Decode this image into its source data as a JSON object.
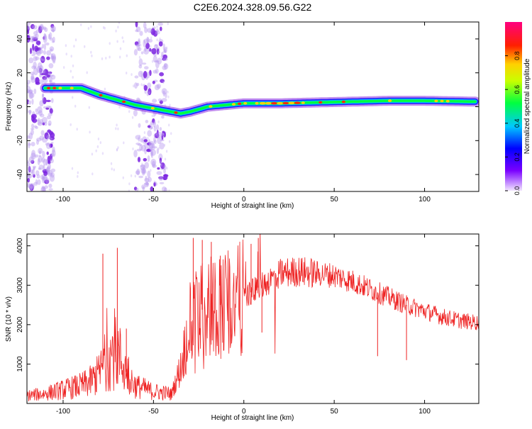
{
  "title": "C2E6.2024.328.09.56.G22",
  "chart_data": [
    {
      "type": "heatmap",
      "title": "C2E6.2024.328.09.56.G22",
      "xlabel": "Height of straight line (km)",
      "ylabel": "Frequency (Hz)",
      "xlim": [
        -120,
        130
      ],
      "ylim": [
        -50,
        50
      ],
      "xticks": [
        -100,
        -50,
        0,
        50,
        100
      ],
      "yticks": [
        -40,
        -20,
        0,
        20,
        40
      ],
      "colorbar": {
        "label": "Normalized spectral amplitude",
        "range": [
          0.0,
          1.0
        ],
        "ticks": [
          "0.0",
          "0.2",
          "0.4",
          "0.6",
          "0.8"
        ],
        "colormap": "rainbow (violet-blue-cyan-green-yellow-red-magenta)"
      },
      "ridge": {
        "description": "peak frequency trace vs height",
        "x": [
          -110,
          -100,
          -90,
          -80,
          -70,
          -60,
          -50,
          -40,
          -35,
          -30,
          -20,
          -10,
          0,
          10,
          20,
          40,
          60,
          80,
          100,
          128
        ],
        "y": [
          11,
          11,
          11,
          7,
          4,
          1,
          -1,
          -3,
          -4,
          -3,
          0,
          1,
          2,
          2,
          2,
          2.5,
          3,
          3.5,
          3.5,
          3
        ]
      },
      "noise_bands_x": [
        [
          -120,
          -105
        ],
        [
          -60,
          -43
        ]
      ]
    },
    {
      "type": "line",
      "xlabel": "Height of straight line (km)",
      "ylabel": "SNR (10 * v/v)",
      "xlim": [
        -120,
        130
      ],
      "ylim": [
        0,
        4300
      ],
      "xticks": [
        -100,
        -50,
        0,
        50,
        100
      ],
      "yticks": [
        1000,
        2000,
        3000,
        4000
      ],
      "color": "#ee2222",
      "envelope": {
        "x": [
          -120,
          -110,
          -100,
          -90,
          -85,
          -80,
          -75,
          -70,
          -65,
          -60,
          -50,
          -40,
          -35,
          -30,
          -25,
          -20,
          -10,
          0,
          10,
          20,
          30,
          40,
          50,
          60,
          70,
          80,
          90,
          100,
          110,
          120,
          130
        ],
        "y": [
          200,
          250,
          350,
          450,
          550,
          750,
          1200,
          1300,
          800,
          450,
          300,
          250,
          900,
          2000,
          2300,
          2500,
          2500,
          2700,
          3000,
          3300,
          3350,
          3300,
          3250,
          3100,
          2900,
          2700,
          2500,
          2350,
          2200,
          2100,
          2050
        ]
      },
      "spikes": [
        {
          "x": -78,
          "y": 3800
        },
        {
          "x": -70,
          "y": 3950
        },
        {
          "x": -65,
          "y": 1900
        },
        {
          "x": -28,
          "y": 4200
        },
        {
          "x": -23,
          "y": 4150
        },
        {
          "x": -18,
          "y": 4100
        },
        {
          "x": -13,
          "y": 3750
        },
        {
          "x": 8,
          "y": 4200
        },
        {
          "x": 4,
          "y": 4050
        }
      ],
      "dips": [
        {
          "x": 74,
          "y": 1200
        },
        {
          "x": 90,
          "y": 1100
        },
        {
          "x": 10,
          "y": 1800
        }
      ]
    }
  ]
}
